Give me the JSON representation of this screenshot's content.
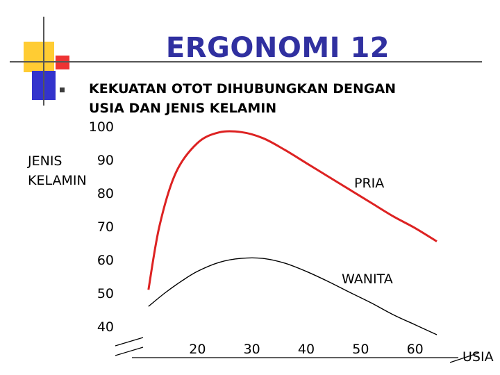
{
  "slide": {
    "title": "ERGONOMI 12",
    "heading_lines": [
      "KEKUATAN OTOT DIHUBUNGKAN DENGAN",
      "USIA DAN JENIS KELAMIN"
    ],
    "title_color": "#3030a0",
    "deco_colors": {
      "yellow": "#ffcc33",
      "blue": "#3333cc",
      "red": "#ee3333"
    }
  },
  "chart_data": {
    "type": "line",
    "ylabel_lines": [
      "JENIS",
      "KELAMIN"
    ],
    "xlabel": "USIA",
    "y_ticks": [
      "100",
      "90",
      "80",
      "70",
      "60",
      "50",
      "40"
    ],
    "x_ticks": [
      "20",
      "30",
      "40",
      "50",
      "60"
    ],
    "ylim": [
      40,
      100
    ],
    "xlim": [
      10,
      70
    ],
    "grid": false,
    "series": [
      {
        "name": "PRIA",
        "color": "#dd2222",
        "x": [
          11,
          13,
          16,
          20,
          24,
          28,
          32,
          36,
          40,
          44,
          48,
          52,
          56,
          60,
          64
        ],
        "y": [
          51,
          70,
          86,
          95,
          98.2,
          98.3,
          96.5,
          93,
          89,
          85,
          81,
          77,
          73,
          69.5,
          65.5
        ]
      },
      {
        "name": "WANITA",
        "color": "#000000",
        "x": [
          11,
          14,
          17,
          20,
          24,
          28,
          32,
          36,
          40,
          44,
          48,
          52,
          56,
          60,
          64
        ],
        "y": [
          46,
          50,
          53.5,
          56.5,
          59.2,
          60.4,
          60.4,
          59,
          56.5,
          53.5,
          50.2,
          47,
          43.5,
          40.5,
          37.5
        ]
      }
    ]
  }
}
